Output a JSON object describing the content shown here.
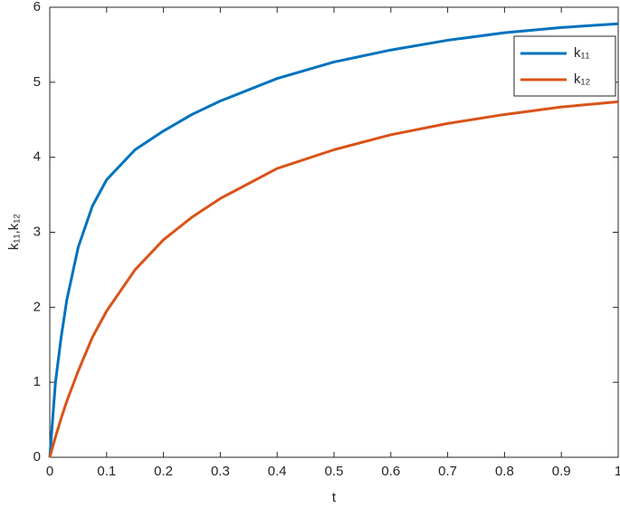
{
  "chart_data": {
    "type": "line",
    "x_label": "t",
    "y_label": "k₁₁,k₁₂",
    "x": [
      0,
      0.01,
      0.02,
      0.03,
      0.05,
      0.075,
      0.1,
      0.15,
      0.2,
      0.25,
      0.3,
      0.4,
      0.5,
      0.6,
      0.7,
      0.8,
      0.9,
      1
    ],
    "series": [
      {
        "name": "k₁₁",
        "color": "#0072bd",
        "values": [
          0,
          1.0,
          1.6,
          2.1,
          2.8,
          3.35,
          3.7,
          4.1,
          4.35,
          4.57,
          4.75,
          5.05,
          5.27,
          5.43,
          5.56,
          5.66,
          5.73,
          5.78
        ]
      },
      {
        "name": "k₁₂",
        "color": "#d95319",
        "values": [
          0,
          0.27,
          0.52,
          0.75,
          1.15,
          1.6,
          1.95,
          2.5,
          2.9,
          3.2,
          3.45,
          3.85,
          4.1,
          4.3,
          4.45,
          4.57,
          4.67,
          4.74
        ]
      }
    ],
    "xlim": [
      0,
      1
    ],
    "xticks": [
      0,
      0.1,
      0.2,
      0.3,
      0.4,
      0.5,
      0.6,
      0.7,
      0.8,
      0.9,
      1
    ],
    "ylim": [
      0,
      6
    ],
    "yticks": [
      0,
      1,
      2,
      3,
      4,
      5,
      6
    ],
    "grid": false,
    "legend": "northeast"
  }
}
